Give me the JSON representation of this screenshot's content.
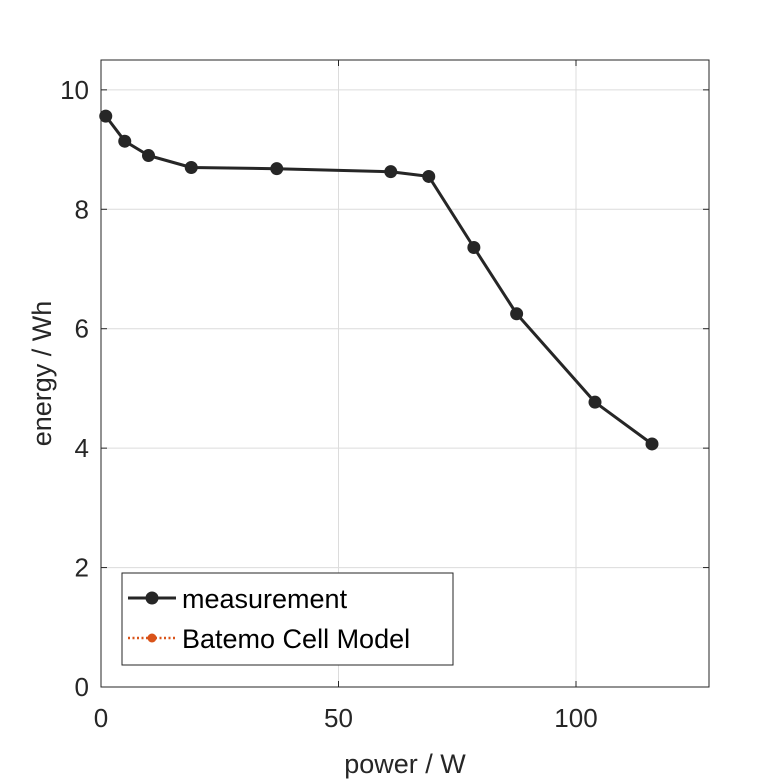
{
  "chart_data": {
    "type": "line",
    "xlabel": "power / W",
    "ylabel": "energy / Wh",
    "xlim": [
      0,
      128
    ],
    "ylim": [
      0,
      10.5
    ],
    "xticks": [
      0,
      50,
      100
    ],
    "yticks": [
      0,
      2,
      4,
      6,
      8,
      10
    ],
    "grid": true,
    "legend_position": "bottom-left",
    "series": [
      {
        "name": "measurement",
        "color": "#262626",
        "line_style": "solid",
        "marker": "circle",
        "x": [
          1,
          5,
          10,
          19,
          37,
          61,
          69,
          78.5,
          87.5,
          104,
          116
        ],
        "y": [
          9.56,
          9.14,
          8.9,
          8.7,
          8.68,
          8.63,
          8.55,
          7.36,
          6.25,
          4.77,
          4.07
        ]
      },
      {
        "name": "Batemo Cell Model",
        "color": "#d95319",
        "line_style": "dotted",
        "marker": "circle",
        "x": [],
        "y": []
      }
    ]
  }
}
